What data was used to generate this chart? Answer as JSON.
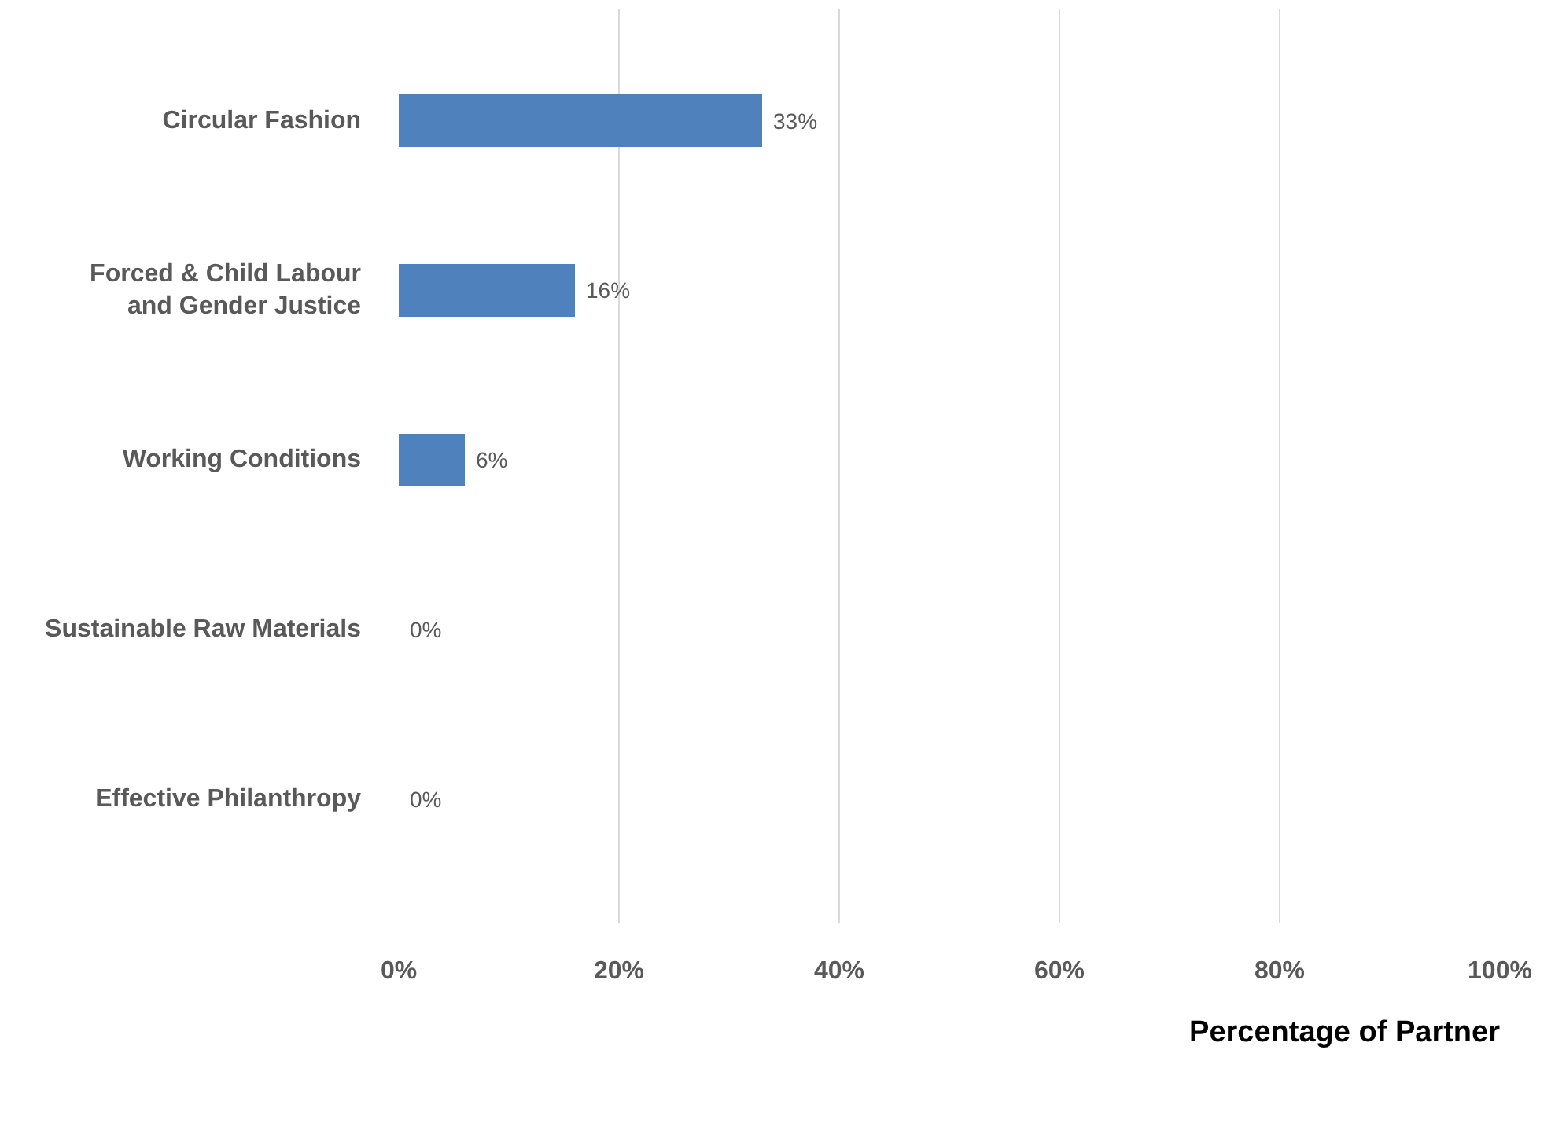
{
  "chart_data": {
    "type": "bar",
    "orientation": "horizontal",
    "xlabel": "Percentage of Partner",
    "categories": [
      "Circular Fashion",
      "Forced & Child Labour and Gender Justice",
      "Working Conditions",
      "Sustainable Raw Materials",
      "Effective Philanthropy"
    ],
    "values": [
      33,
      16,
      6,
      0,
      0
    ],
    "value_labels": [
      "33%",
      "16%",
      "6%",
      "0%",
      "0%"
    ],
    "color": "#4f81bd",
    "xlim": [
      0,
      100
    ],
    "xticks": [
      {
        "value": 0,
        "label": "0%"
      },
      {
        "value": 20,
        "label": "20%"
      },
      {
        "value": 40,
        "label": "40%"
      },
      {
        "value": 60,
        "label": "60%"
      },
      {
        "value": 80,
        "label": "80%"
      },
      {
        "value": 100,
        "label": "100%"
      }
    ],
    "grid": "x"
  }
}
